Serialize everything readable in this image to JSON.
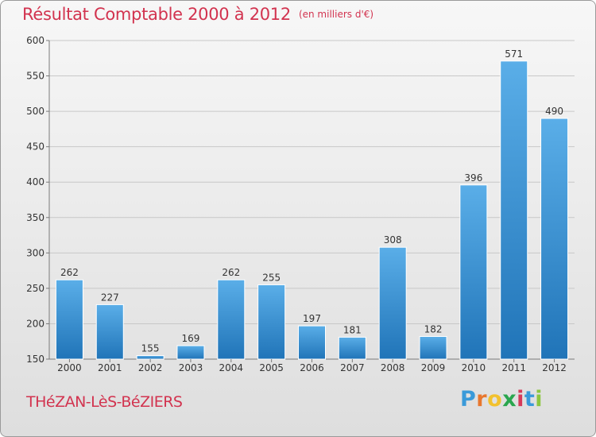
{
  "header": {
    "title": "Résultat Comptable 2000 à 2012",
    "subtitle": "(en milliers d'€)"
  },
  "footer": {
    "commune": "THéZAN-LèS-BéZIERS",
    "brand_letters": [
      "P",
      "r",
      "o",
      "x",
      "i",
      "t",
      "i"
    ],
    "brand_colors": [
      "#3a9ad9",
      "#e8772e",
      "#f2c12e",
      "#2aa64e",
      "#d63a5a",
      "#3a9ad9",
      "#8cc63f"
    ]
  },
  "colors": {
    "title": "#d2334f",
    "bar_light": "#5aaee8",
    "bar_dark": "#2074b8",
    "grid": "#c8c8c8",
    "axis": "#7a7a7a",
    "text": "#333333"
  },
  "chart_data": {
    "type": "bar",
    "title": "Résultat Comptable 2000 à 2012",
    "subtitle": "(en milliers d'€)",
    "xlabel": "",
    "ylabel": "",
    "categories": [
      "2000",
      "2001",
      "2002",
      "2003",
      "2004",
      "2005",
      "2006",
      "2007",
      "2008",
      "2009",
      "2010",
      "2011",
      "2012"
    ],
    "values": [
      262,
      227,
      155,
      169,
      262,
      255,
      197,
      181,
      308,
      182,
      396,
      571,
      490
    ],
    "ylim": [
      150,
      600
    ],
    "yticks": [
      150,
      200,
      250,
      300,
      350,
      400,
      450,
      500,
      550,
      600
    ],
    "grid": true,
    "legend": "none"
  }
}
